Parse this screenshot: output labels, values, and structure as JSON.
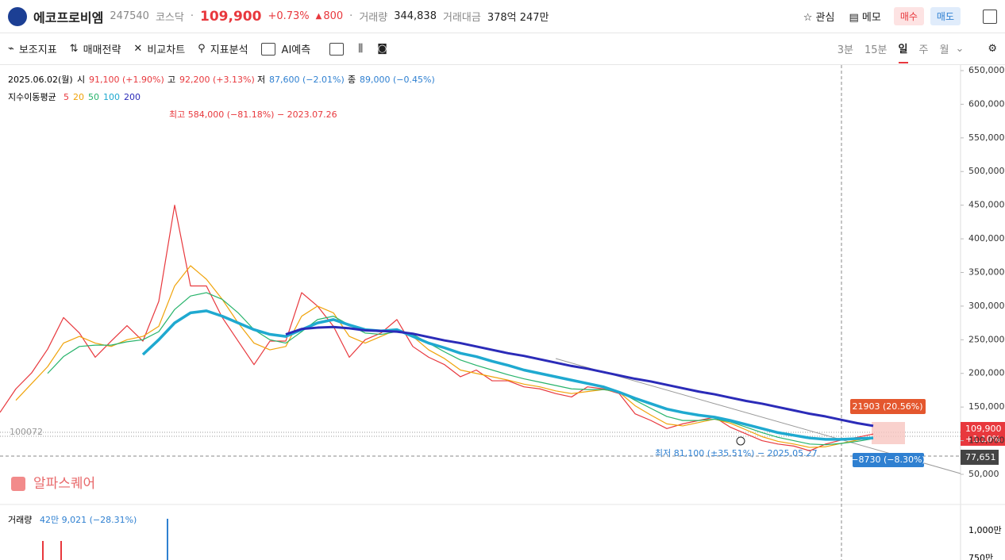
{
  "header": {
    "name": "에코프로비엠",
    "code": "247540",
    "market": "코스닥",
    "price": "109,900",
    "change_pct": "+0.73%",
    "change": "800",
    "volume_label": "거래량",
    "volume": "344,838",
    "amount_label": "거래대금",
    "amount": "378억 247만",
    "actions": [
      "관심",
      "메모",
      "매수",
      "매도"
    ]
  },
  "toolbar": {
    "tools": [
      "보조지표",
      "매매전략",
      "비교차트",
      "지표분석",
      "AI예측"
    ],
    "periods": [
      "3분",
      "15분",
      "일",
      "주",
      "월"
    ]
  },
  "info": {
    "date": "2025.06.02(월)",
    "items": [
      {
        "label": "시",
        "value": "91,100 (+1.90%)"
      },
      {
        "label": "고",
        "value": "92,200 (+3.13%)"
      },
      {
        "label": "저",
        "value": "87,600 (−2.01%)"
      },
      {
        "label": "종",
        "value": "89,000 (−0.45%)"
      }
    ],
    "ma_title": "지수이동평균"
  },
  "chart_data": {
    "type": "line",
    "series": [
      {
        "name": "5",
        "color": "#e8383d",
        "values": [
          142000,
          177000,
          201000,
          236000,
          283000,
          260000,
          224000,
          248000,
          271000,
          248000,
          307000,
          450000,
          330000,
          330000,
          283000,
          248000,
          213000,
          248000,
          248000,
          320000,
          300000,
          270000,
          224000,
          250000,
          260000,
          280000,
          240000,
          224000,
          213000,
          195000,
          205000,
          189000,
          189000,
          180000,
          177000,
          170000,
          165000,
          180000,
          177000,
          170000,
          140000,
          130000,
          118000,
          125000,
          130000,
          135000,
          120000,
          110000,
          100000,
          95000,
          92000,
          85000,
          95000,
          101000,
          105000,
          109900
        ]
      },
      {
        "name": "20",
        "color": "#f0a30a",
        "values": [
          null,
          160000,
          185000,
          210000,
          245000,
          255000,
          245000,
          240000,
          250000,
          255000,
          270000,
          330000,
          360000,
          340000,
          310000,
          275000,
          245000,
          235000,
          240000,
          285000,
          300000,
          290000,
          255000,
          245000,
          255000,
          265000,
          255000,
          235000,
          222000,
          205000,
          200000,
          195000,
          190000,
          184000,
          180000,
          174000,
          170000,
          173000,
          176000,
          172000,
          152000,
          138000,
          125000,
          122000,
          127000,
          132000,
          126000,
          116000,
          106000,
          99000,
          95000,
          90000,
          91000,
          96000,
          101000,
          105000
        ]
      },
      {
        "name": "50",
        "color": "#27b36b",
        "values": [
          null,
          null,
          null,
          200000,
          225000,
          240000,
          242000,
          242000,
          247000,
          250000,
          262000,
          295000,
          315000,
          320000,
          310000,
          290000,
          265000,
          250000,
          245000,
          262000,
          280000,
          285000,
          272000,
          260000,
          258000,
          262000,
          258000,
          245000,
          232000,
          220000,
          212000,
          205000,
          198000,
          192000,
          187000,
          182000,
          177000,
          176000,
          176000,
          173000,
          160000,
          148000,
          136000,
          130000,
          130000,
          132000,
          128000,
          120000,
          112000,
          105000,
          100000,
          95000,
          94000,
          96000,
          99000,
          103000
        ]
      },
      {
        "name": "100",
        "color": "#1fa9d0",
        "values": [
          null,
          null,
          null,
          null,
          null,
          null,
          null,
          null,
          null,
          228000,
          250000,
          275000,
          290000,
          293000,
          285000,
          275000,
          265000,
          258000,
          255000,
          265000,
          275000,
          280000,
          272000,
          265000,
          263000,
          265000,
          255000,
          245000,
          238000,
          230000,
          225000,
          218000,
          212000,
          205000,
          200000,
          195000,
          190000,
          185000,
          180000,
          172000,
          163000,
          155000,
          147000,
          142000,
          138000,
          135000,
          130000,
          124000,
          118000,
          112000,
          108000,
          104000,
          102000,
          102000,
          103000,
          104000
        ]
      },
      {
        "name": "200",
        "color": "#2b2bb8",
        "values": [
          null,
          null,
          null,
          null,
          null,
          null,
          null,
          null,
          null,
          null,
          null,
          null,
          null,
          null,
          null,
          null,
          null,
          null,
          258000,
          266000,
          268000,
          269000,
          267000,
          264000,
          263000,
          262000,
          259000,
          254000,
          249000,
          245000,
          240000,
          235000,
          230000,
          226000,
          221000,
          216000,
          211000,
          207000,
          202000,
          197000,
          192000,
          188000,
          183000,
          178000,
          173000,
          169000,
          164000,
          159000,
          155000,
          150000,
          145000,
          140000,
          136000,
          131000,
          126000,
          122000
        ]
      }
    ],
    "ylim": [
      5200,
      658250
    ],
    "yticks": [
      {
        "value": 650000,
        "label": "650,000"
      },
      {
        "value": 600000,
        "label": "600,000"
      },
      {
        "value": 550000,
        "label": "550,000"
      },
      {
        "value": 500000,
        "label": "500,000"
      },
      {
        "value": 450000,
        "label": "450,000"
      },
      {
        "value": 400000,
        "label": "400,000"
      },
      {
        "value": 350000,
        "label": "350,000"
      },
      {
        "value": 300000,
        "label": "300,000"
      },
      {
        "value": 250000,
        "label": "250,000"
      },
      {
        "value": 200000,
        "label": "200,000"
      },
      {
        "value": 150000,
        "label": "150,000"
      },
      {
        "value": 100000,
        "label": "100,000"
      },
      {
        "value": 50000,
        "label": "50,000"
      }
    ],
    "grid": false,
    "high_label": "최고 584,000 (−81.18%) − 2023.07.26",
    "low_label": "최저 81,100 (±35.51%) − 2025.05.27",
    "range_up": "21903 (20.56%)",
    "range_down": "−8730 (−8.30%)",
    "ref_label": "100072",
    "price_tag": "109,900",
    "price_tag_change": "+1.10%",
    "cursor_tag": "77,651"
  },
  "watermark": "알파스퀘어",
  "volume_pane": {
    "label": "거래량",
    "value": "42만 9,021 (−28.31%)",
    "ticks": [
      "1,000만",
      "750만"
    ]
  }
}
